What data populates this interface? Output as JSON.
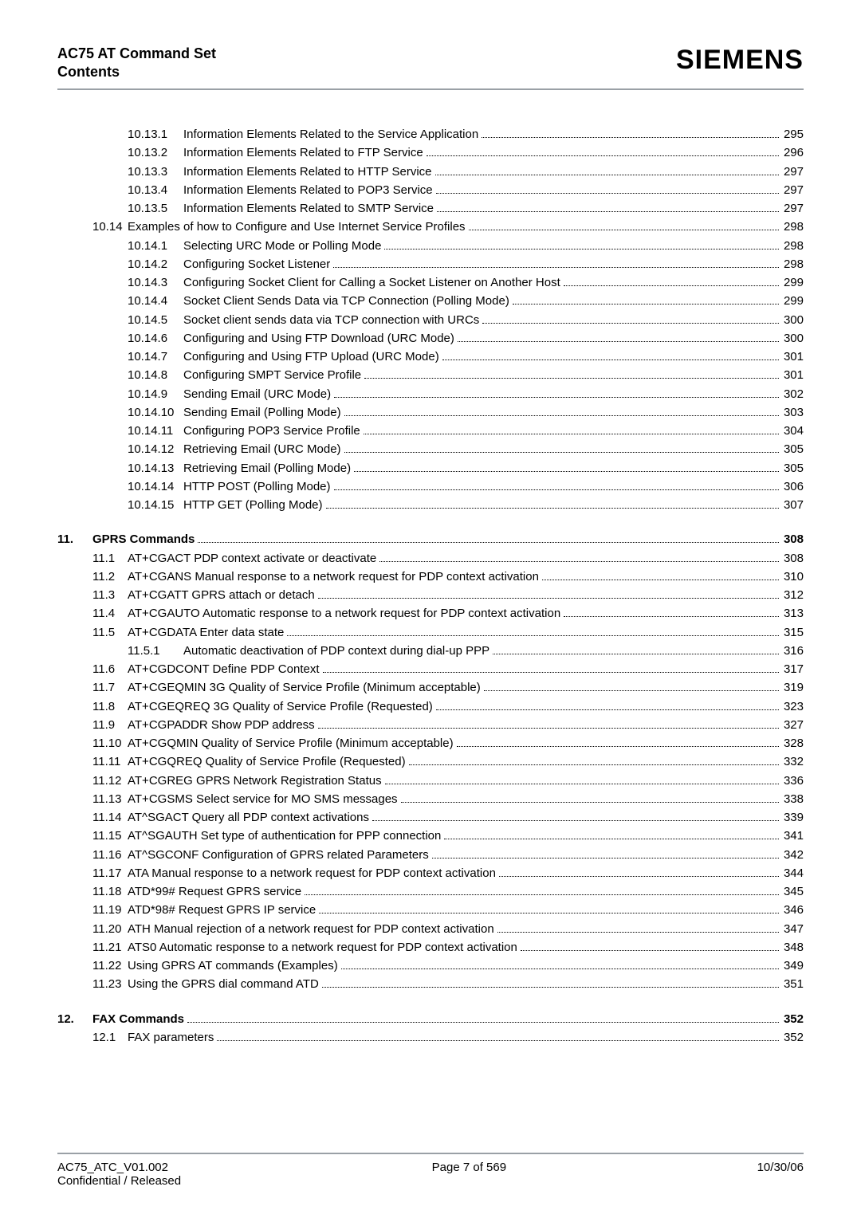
{
  "header": {
    "left_line1": "AC75 AT Command Set",
    "left_line2": "Contents",
    "brand": "SIEMENS"
  },
  "footer": {
    "left_line1": "AC75_ATC_V01.002",
    "left_line2": "Confidential / Released",
    "center": "Page 7 of 569",
    "right": "10/30/06"
  },
  "toc": [
    {
      "level": 2,
      "num": "10.13.1",
      "title": "Information Elements Related to the Service Application",
      "page": "295"
    },
    {
      "level": 2,
      "num": "10.13.2",
      "title": "Information Elements Related to FTP Service",
      "page": "296"
    },
    {
      "level": 2,
      "num": "10.13.3",
      "title": "Information Elements Related to HTTP Service",
      "page": "297"
    },
    {
      "level": 2,
      "num": "10.13.4",
      "title": "Information Elements Related to POP3 Service",
      "page": "297"
    },
    {
      "level": 2,
      "num": "10.13.5",
      "title": "Information Elements Related to SMTP Service",
      "page": "297"
    },
    {
      "level": 1,
      "num": "10.14",
      "title": "Examples of how to Configure and Use Internet Service Profiles",
      "page": "298"
    },
    {
      "level": 2,
      "num": "10.14.1",
      "title": "Selecting URC Mode or Polling Mode",
      "page": "298"
    },
    {
      "level": 2,
      "num": "10.14.2",
      "title": "Configuring Socket Listener",
      "page": "298"
    },
    {
      "level": 2,
      "num": "10.14.3",
      "title": "Configuring Socket Client for Calling a Socket Listener on Another Host",
      "page": "299"
    },
    {
      "level": 2,
      "num": "10.14.4",
      "title": "Socket Client Sends Data via TCP Connection (Polling Mode)",
      "page": "299"
    },
    {
      "level": 2,
      "num": "10.14.5",
      "title": "Socket client sends data via TCP connection with URCs",
      "page": "300"
    },
    {
      "level": 2,
      "num": "10.14.6",
      "title": "Configuring and Using FTP Download (URC Mode)",
      "page": "300"
    },
    {
      "level": 2,
      "num": "10.14.7",
      "title": "Configuring and Using FTP Upload (URC Mode)",
      "page": "301"
    },
    {
      "level": 2,
      "num": "10.14.8",
      "title": "Configuring SMPT Service Profile",
      "page": "301"
    },
    {
      "level": 2,
      "num": "10.14.9",
      "title": "Sending Email (URC Mode)",
      "page": "302"
    },
    {
      "level": 2,
      "num": "10.14.10",
      "title": "Sending Email (Polling Mode)",
      "page": "303"
    },
    {
      "level": 2,
      "num": "10.14.11",
      "title": "Configuring POP3 Service Profile",
      "page": "304"
    },
    {
      "level": 2,
      "num": "10.14.12",
      "title": "Retrieving Email (URC Mode)",
      "page": "305"
    },
    {
      "level": 2,
      "num": "10.14.13",
      "title": "Retrieving Email (Polling Mode)",
      "page": "305"
    },
    {
      "level": 2,
      "num": "10.14.14",
      "title": "HTTP POST (Polling Mode)",
      "page": "306"
    },
    {
      "level": 2,
      "num": "10.14.15",
      "title": "HTTP GET (Polling Mode)",
      "page": "307"
    },
    {
      "level": 0,
      "num": "11.",
      "title": "GPRS Commands",
      "page": "308",
      "head": true
    },
    {
      "level": 1,
      "num": "11.1",
      "title": "AT+CGACT   PDP context activate or deactivate",
      "page": "308"
    },
    {
      "level": 1,
      "num": "11.2",
      "title": "AT+CGANS   Manual response to a network request for PDP context activation",
      "page": "310"
    },
    {
      "level": 1,
      "num": "11.3",
      "title": "AT+CGATT   GPRS attach or detach",
      "page": "312"
    },
    {
      "level": 1,
      "num": "11.4",
      "title": "AT+CGAUTO   Automatic response to a network request for PDP context activation",
      "page": "313"
    },
    {
      "level": 1,
      "num": "11.5",
      "title": "AT+CGDATA   Enter data state",
      "page": "315"
    },
    {
      "level": 2,
      "num": "11.5.1",
      "title": "Automatic deactivation of PDP context during dial-up PPP",
      "page": "316"
    },
    {
      "level": 1,
      "num": "11.6",
      "title": "AT+CGDCONT   Define PDP Context",
      "page": "317"
    },
    {
      "level": 1,
      "num": "11.7",
      "title": "AT+CGEQMIN   3G Quality of Service Profile (Minimum acceptable)",
      "page": "319"
    },
    {
      "level": 1,
      "num": "11.8",
      "title": "AT+CGEQREQ   3G Quality of Service Profile (Requested)",
      "page": "323"
    },
    {
      "level": 1,
      "num": "11.9",
      "title": "AT+CGPADDR   Show PDP address",
      "page": "327"
    },
    {
      "level": 1,
      "num": "11.10",
      "title": "AT+CGQMIN   Quality of Service Profile (Minimum acceptable)",
      "page": "328"
    },
    {
      "level": 1,
      "num": "11.11",
      "title": "AT+CGQREQ   Quality of Service Profile (Requested)",
      "page": "332"
    },
    {
      "level": 1,
      "num": "11.12",
      "title": "AT+CGREG   GPRS Network Registration Status",
      "page": "336"
    },
    {
      "level": 1,
      "num": "11.13",
      "title": "AT+CGSMS   Select service for MO SMS messages",
      "page": "338"
    },
    {
      "level": 1,
      "num": "11.14",
      "title": "AT^SGACT   Query all PDP context activations",
      "page": "339"
    },
    {
      "level": 1,
      "num": "11.15",
      "title": "AT^SGAUTH   Set type of authentication for PPP connection",
      "page": "341"
    },
    {
      "level": 1,
      "num": "11.16",
      "title": "AT^SGCONF   Configuration of GPRS related Parameters",
      "page": "342"
    },
    {
      "level": 1,
      "num": "11.17",
      "title": "ATA   Manual response to a network request for PDP context activation",
      "page": "344"
    },
    {
      "level": 1,
      "num": "11.18",
      "title": "ATD*99#   Request GPRS service",
      "page": "345"
    },
    {
      "level": 1,
      "num": "11.19",
      "title": "ATD*98#   Request GPRS IP service",
      "page": "346"
    },
    {
      "level": 1,
      "num": "11.20",
      "title": "ATH   Manual rejection of a network request for PDP context activation",
      "page": "347"
    },
    {
      "level": 1,
      "num": "11.21",
      "title": "ATS0   Automatic response to a network request for PDP context activation",
      "page": "348"
    },
    {
      "level": 1,
      "num": "11.22",
      "title": "Using GPRS AT commands (Examples)",
      "page": "349"
    },
    {
      "level": 1,
      "num": "11.23",
      "title": "Using the GPRS dial command ATD",
      "page": "351"
    },
    {
      "level": 0,
      "num": "12.",
      "title": "FAX Commands",
      "page": "352",
      "head": true
    },
    {
      "level": 1,
      "num": "12.1",
      "title": "FAX parameters",
      "page": "352"
    }
  ]
}
